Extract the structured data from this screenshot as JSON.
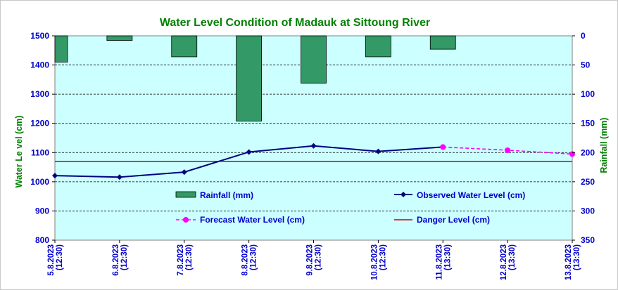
{
  "chart_data": {
    "type": "bar+line",
    "title": "Water Level Condition of Madauk at Sittoung River",
    "ylabel_left": "Water Le vel (cm)",
    "ylabel_right": "Rainfall (mm)",
    "ylim_left": [
      800,
      1500
    ],
    "yticks_left": [
      800,
      900,
      1000,
      1100,
      1200,
      1300,
      1400,
      1500
    ],
    "ylim_right": [
      0,
      350
    ],
    "yticks_right": [
      0,
      50,
      100,
      150,
      200,
      250,
      300,
      350
    ],
    "right_axis_inverted": true,
    "grid": "horizontal dashed",
    "x_dates": [
      "5.8.2023",
      "6.8.2023",
      "7.8.2023",
      "8.8.2023",
      "9.8.2023",
      "10.8.2023",
      "11.8.2023",
      "12.8.2023",
      "13.8.2023"
    ],
    "x_times": [
      "(12:30)",
      "(12:30)",
      "(12:30)",
      "(12:30)",
      "(12:30)",
      "(12:30)",
      "(13:30)",
      "(13:30)",
      "(13:30)"
    ],
    "rainfall_mm": [
      45,
      8,
      36,
      146,
      81,
      36,
      23,
      0,
      0
    ],
    "observed_water_level_cm": [
      1021,
      1016,
      1033,
      1102,
      1123,
      1104,
      1119,
      null,
      null
    ],
    "forecast_water_level_cm": [
      null,
      null,
      null,
      null,
      null,
      null,
      1119,
      1108,
      1095
    ],
    "danger_level_cm": 1070,
    "legend": {
      "rainfall": "Rainfall (mm)",
      "observed": "Observed Water Level (cm)",
      "forecast": "Forecast Water Level (cm)",
      "danger": "Danger Level (cm)"
    },
    "colors": {
      "plot_background": "#ccffff",
      "rainfall_bar": "#339966",
      "observed_line": "#000080",
      "forecast_line": "#ff00ff",
      "danger_line": "#cc0000",
      "title": "#008000",
      "axis_text": "#0000cc",
      "axis_title": "#008000"
    }
  }
}
